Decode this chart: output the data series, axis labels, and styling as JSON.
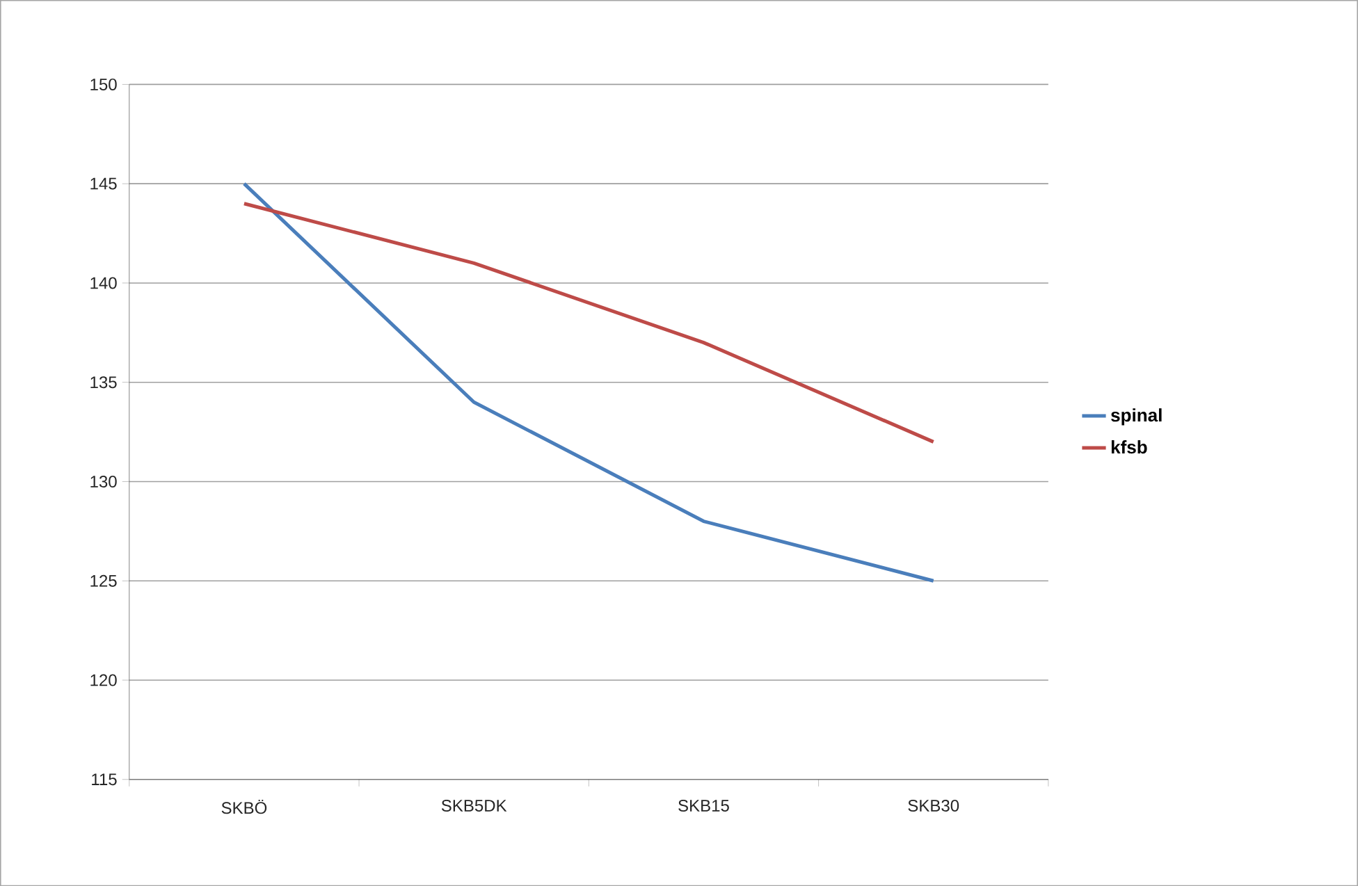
{
  "chart_data": {
    "type": "line",
    "categories": [
      "SKBÖ",
      "SKB5DK",
      "SKB15",
      "SKB30"
    ],
    "series": [
      {
        "name": "spinal",
        "color": "#4a7ebb",
        "values": [
          145,
          134,
          128,
          125
        ]
      },
      {
        "name": "kfsb",
        "color": "#be4b48",
        "values": [
          144,
          141,
          137,
          132
        ]
      }
    ],
    "ylim": [
      115,
      150
    ],
    "yticks": [
      115,
      120,
      125,
      130,
      135,
      140,
      145,
      150
    ],
    "grid": "y",
    "legend": "right",
    "marker": "none",
    "line_style": "solid"
  }
}
